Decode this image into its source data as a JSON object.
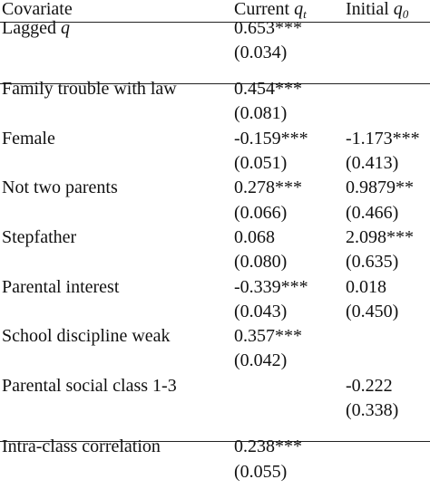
{
  "header": {
    "covariate": "Covariate",
    "current": {
      "label": "Current",
      "symbol": "q",
      "subscript": "t"
    },
    "initial": {
      "label": "Initial",
      "symbol": "q",
      "subscript": "0"
    }
  },
  "sections": [
    [
      {
        "covariate": "Lagged",
        "covariate_symbol": "q",
        "current": {
          "estimate": "0.653***",
          "se": "(0.034)"
        }
      }
    ],
    [
      {
        "covariate": "Family trouble with law",
        "current": {
          "estimate": "0.454***",
          "se": "(0.081)"
        }
      },
      {
        "covariate": "Female",
        "current": {
          "estimate": "-0.159***",
          "se": "(0.051)"
        },
        "initial": {
          "estimate": "-1.173***",
          "se": "(0.413)"
        }
      },
      {
        "covariate": "Not two parents",
        "current": {
          "estimate": "0.278***",
          "se": "(0.066)"
        },
        "initial": {
          "estimate": "0.9879**",
          "se": "(0.466)"
        }
      },
      {
        "covariate": "Stepfather",
        "current": {
          "estimate": "0.068",
          "se": "(0.080)"
        },
        "initial": {
          "estimate": "2.098***",
          "se": "(0.635)"
        }
      },
      {
        "covariate": "Parental interest",
        "current": {
          "estimate": "-0.339***",
          "se": "(0.043)"
        },
        "initial": {
          "estimate": "0.018",
          "se": "(0.450)"
        }
      },
      {
        "covariate": "School discipline weak",
        "current": {
          "estimate": "0.357***",
          "se": "(0.042)"
        }
      },
      {
        "covariate": "Parental social class 1-3",
        "initial": {
          "estimate": "-0.222",
          "se": "(0.338)"
        }
      }
    ],
    [
      {
        "covariate": "Intra-class correlation",
        "current": {
          "estimate": "0.238***",
          "se": "(0.055)"
        }
      }
    ]
  ]
}
